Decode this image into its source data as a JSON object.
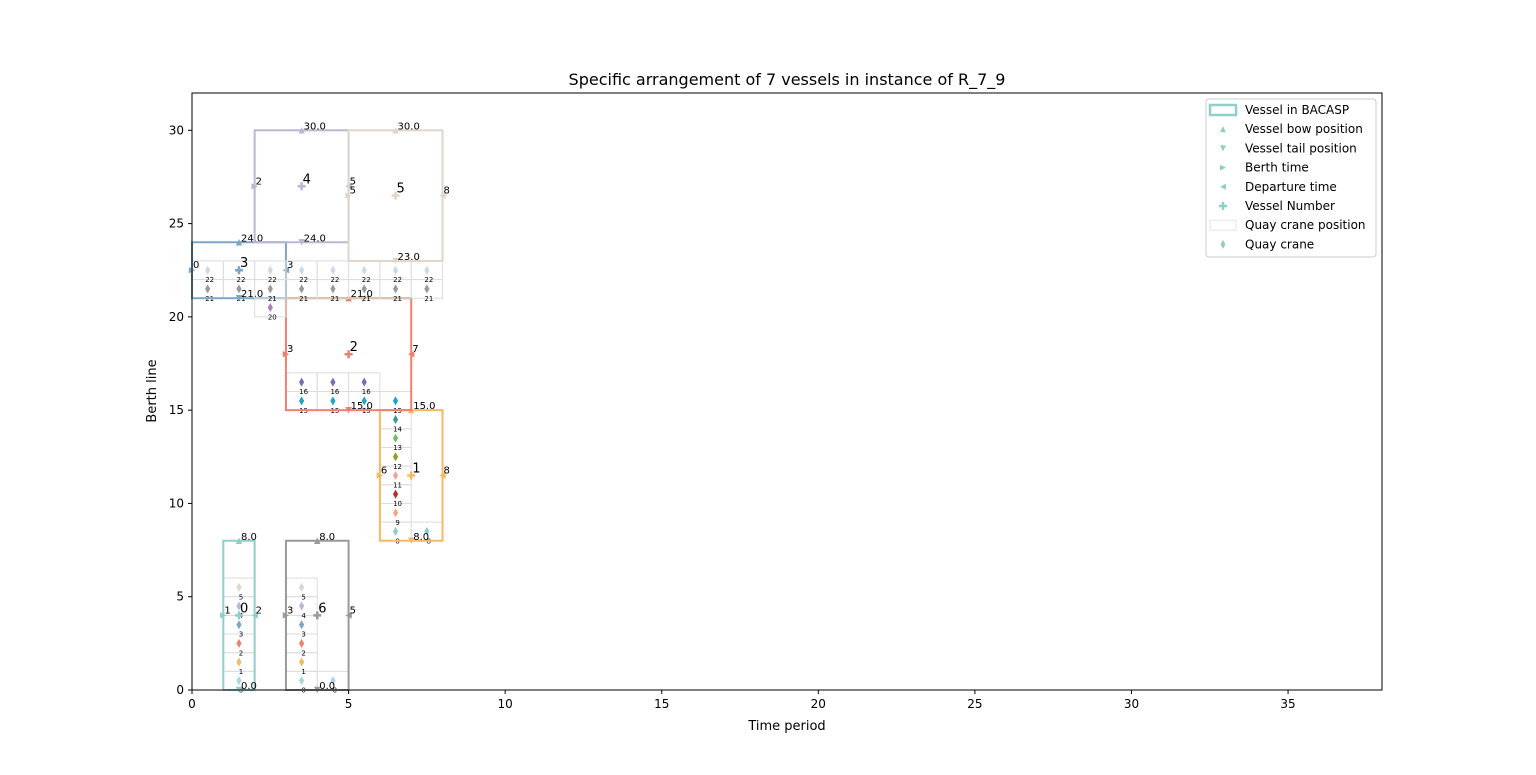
{
  "chart_data": {
    "type": "gantt",
    "title": "Specific arrangement of 7 vessels in instance of R_7_9",
    "xlabel": "Time period",
    "ylabel": "Berth line",
    "xlim": [
      0,
      38
    ],
    "ylim": [
      0,
      32
    ],
    "xticks": [
      0,
      5,
      10,
      15,
      20,
      25,
      30,
      35
    ],
    "yticks": [
      0,
      5,
      10,
      15,
      20,
      25,
      30
    ],
    "grid": false,
    "legend_position": "top-right",
    "legend": [
      "Vessel in BACASP",
      "Vessel bow position",
      "Vessel tail position",
      "Berth time",
      "Departure time",
      "Vessel Number",
      "Quay crane position",
      "Quay crane"
    ],
    "vessels": [
      {
        "id": "0",
        "color": "#8ecfc9",
        "start": 1,
        "end": 2,
        "tail": 0,
        "bow": 8,
        "label_tail": "0.0",
        "label_bow": "8.0",
        "label_start": "1",
        "label_end": "2",
        "cranes": [
          [
            1,
            0
          ],
          [
            1,
            1
          ],
          [
            1,
            2
          ],
          [
            1,
            3
          ],
          [
            1,
            4
          ],
          [
            1,
            5
          ]
        ]
      },
      {
        "id": "1",
        "color": "#f8b862",
        "start": 6,
        "end": 8,
        "tail": 8,
        "bow": 15,
        "label_tail": "8.0",
        "label_bow": "15.0",
        "label_start": "6",
        "label_end": "8",
        "cranes": [
          [
            6,
            8
          ],
          [
            6,
            9
          ],
          [
            6,
            10
          ],
          [
            6,
            11
          ],
          [
            6,
            12
          ],
          [
            6,
            13
          ],
          [
            6,
            14
          ],
          [
            7,
            8
          ]
        ]
      },
      {
        "id": "2",
        "color": "#f07f6c",
        "start": 3,
        "end": 7,
        "tail": 15,
        "bow": 21,
        "label_tail": "15.0",
        "label_bow": "21.0",
        "label_start": "3",
        "label_end": "7",
        "cranes": [
          [
            3,
            15
          ],
          [
            3,
            16
          ],
          [
            4,
            15
          ],
          [
            4,
            16
          ],
          [
            5,
            15
          ],
          [
            5,
            16
          ],
          [
            6,
            15
          ]
        ]
      },
      {
        "id": "3",
        "color": "#7ba7c7",
        "start": 0,
        "end": 3,
        "tail": 21,
        "bow": 24,
        "label_tail": "21.0",
        "label_bow": "24.0",
        "label_start": "0",
        "label_end": "3",
        "cranes": [
          [
            0,
            21
          ],
          [
            0,
            22
          ],
          [
            1,
            21
          ],
          [
            1,
            22
          ],
          [
            2,
            20
          ]
        ]
      },
      {
        "id": "4",
        "color": "#bdb5d5",
        "start": 2,
        "end": 5,
        "tail": 24,
        "bow": 30,
        "label_tail": "24.0",
        "label_bow": "30.0",
        "label_start": "2",
        "label_end": "5",
        "cranes": [
          [
            2,
            21
          ],
          [
            2,
            22
          ],
          [
            3,
            21
          ],
          [
            3,
            22
          ],
          [
            4,
            21
          ],
          [
            4,
            22
          ]
        ]
      },
      {
        "id": "5",
        "color": "#e0d5ca",
        "start": 5,
        "end": 8,
        "tail": 23,
        "bow": 30,
        "label_tail": "23.0",
        "label_bow": "30.0",
        "label_start": "5",
        "label_end": "8",
        "cranes": [
          [
            5,
            21
          ],
          [
            5,
            22
          ],
          [
            6,
            21
          ],
          [
            6,
            22
          ],
          [
            7,
            21
          ],
          [
            7,
            22
          ]
        ]
      },
      {
        "id": "6",
        "color": "#999999",
        "start": 3,
        "end": 5,
        "tail": 0,
        "bow": 8,
        "label_tail": "0.0",
        "label_bow": "8.0",
        "label_start": "3",
        "label_end": "5",
        "cranes": [
          [
            3,
            0
          ],
          [
            3,
            1
          ],
          [
            3,
            2
          ],
          [
            3,
            3
          ],
          [
            3,
            4
          ],
          [
            3,
            5
          ],
          [
            4,
            0
          ]
        ]
      }
    ],
    "crane_colors": {
      "0": "#a8d8dc",
      "1": "#f8b862",
      "2": "#f07f6c",
      "3": "#7ba7c7",
      "4": "#bdb5d5",
      "5": "#e0d5ca",
      "8": "#8ecfc9",
      "9": "#f4a582",
      "10": "#c1272d",
      "11": "#f7a0a0",
      "12": "#9a9a2a",
      "13": "#6cbf5f",
      "14": "#3a9c8a",
      "15": "#1fa3c8",
      "16": "#7e6bb0",
      "20": "#b07ac5",
      "21": "#999999",
      "22": "#c9dbe8"
    }
  }
}
